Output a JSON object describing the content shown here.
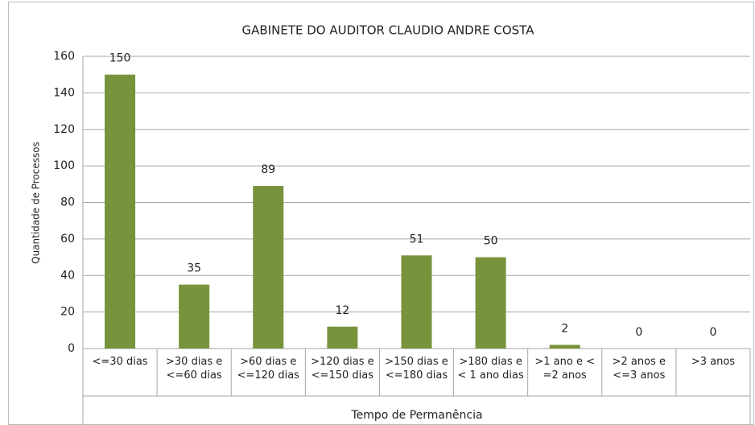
{
  "chart_data": {
    "type": "bar",
    "title": "GABINETE DO AUDITOR CLAUDIO ANDRE COSTA",
    "x_label": "Tempo de Permanência",
    "y_label": "Quantidade de Processos",
    "categories": [
      "<=30 dias",
      ">30 dias e <=60 dias",
      ">60 dias e <=120 dias",
      ">120 dias e <=150 dias",
      ">150 dias e <=180 dias",
      ">180 dias e < 1 ano dias",
      ">1 ano e < =2 anos",
      ">2 anos e <=3 anos",
      ">3 anos"
    ],
    "values": [
      150,
      35,
      89,
      12,
      51,
      50,
      2,
      0,
      0
    ],
    "color": "#77933c",
    "ylim": [
      0,
      160
    ],
    "yticks": [
      0,
      20,
      40,
      60,
      80,
      100,
      120,
      140,
      160
    ],
    "grid": true
  }
}
